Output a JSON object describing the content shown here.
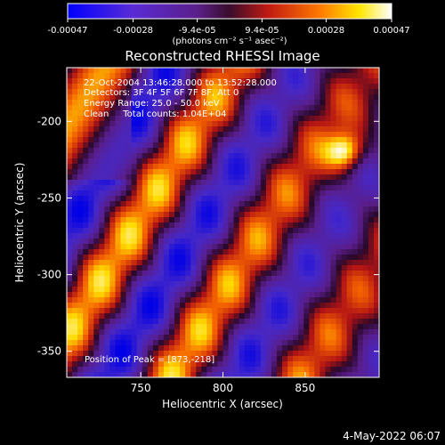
{
  "chart_data": {
    "type": "heatmap",
    "title": "Reconstructed RHESSI Image",
    "xlabel": "Heliocentric X (arcsec)",
    "ylabel": "Heliocentric Y (arcsec)",
    "xlim": [
      705,
      895
    ],
    "ylim": [
      -367,
      -165
    ],
    "x_ticks": [
      750,
      800,
      850
    ],
    "y_ticks": [
      -200,
      -250,
      -300,
      -350
    ],
    "colorbar": {
      "min": -0.00047,
      "max": 0.00047,
      "ticks": [
        "-0.00047",
        "-0.00028",
        "-9.4e-05",
        "9.4e-05",
        "0.00028",
        "0.00047"
      ],
      "unit_label": "(photons cm⁻² s⁻¹ asec⁻²)"
    },
    "annotations": [
      "22-Oct-2004 13:46:28.000 to 13:52:28.000",
      "Detectors: 3F 4F 5F 6F 7F 8F, Att 0",
      "Energy Range: 25.0 - 50.0 keV",
      "Clean     Total counts: 1.04E+04"
    ],
    "peak_label": "Position of Peak = [873,-218]",
    "peak": [
      873,
      -218
    ]
  },
  "footer_date": "4-May-2022 06:07"
}
